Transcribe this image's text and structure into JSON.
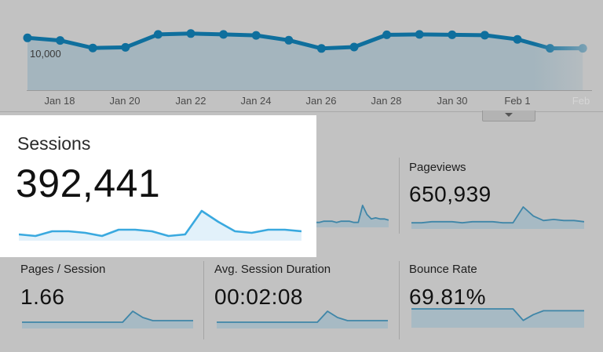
{
  "colors": {
    "background": "#c2c2c2",
    "line": "#0f6f9d",
    "area": "#a4b5be",
    "spark_line_dim": "#3f86a8",
    "spark_area_dim": "#a7bac4",
    "spark_line_bright": "#3aa9df",
    "spark_area_bright": "#e2f1fa",
    "card": "#ffffff"
  },
  "main_chart": {
    "y_axis_label": "10,000",
    "x_axis_labels": [
      "Jan 18",
      "Jan 20",
      "Jan 22",
      "Jan 24",
      "Jan 26",
      "Jan 28",
      "Jan 30",
      "Feb 1",
      "Feb"
    ],
    "sessions_series": [
      13260,
      12750,
      11270,
      11400,
      13930,
      14100,
      13930,
      13750,
      12790,
      11180,
      11460,
      13850,
      13930,
      13850,
      13780,
      12960,
      11220,
      11220
    ]
  },
  "metrics": {
    "sessions": {
      "label": "Sessions",
      "value": "392,441",
      "spark": [
        3,
        2,
        5,
        5,
        4,
        2,
        6,
        6,
        5,
        2,
        3,
        18,
        11,
        5,
        4,
        6,
        6,
        5
      ]
    },
    "users": {
      "spark": [
        3,
        3,
        4,
        4,
        4,
        3,
        4,
        4,
        4,
        3,
        3,
        18,
        10,
        6,
        7,
        6,
        6,
        5
      ]
    },
    "pageviews": {
      "label": "Pageviews",
      "value": "650,939",
      "spark": [
        4,
        4,
        5,
        5,
        5,
        4,
        5,
        5,
        5,
        4,
        4,
        18,
        10,
        6,
        7,
        6,
        6,
        5
      ]
    },
    "pages_per_session": {
      "label": "Pages / Session",
      "value": "1.66",
      "spark": [
        3,
        3,
        3,
        3,
        3,
        3,
        3,
        3,
        3,
        3,
        3,
        10,
        6,
        4,
        4,
        4,
        4,
        4
      ]
    },
    "avg_session_duration": {
      "label": "Avg. Session Duration",
      "value": "00:02:08",
      "spark": [
        3,
        3,
        3,
        3,
        3,
        3,
        3,
        3,
        3,
        3,
        3,
        10,
        6,
        4,
        4,
        4,
        4,
        4
      ]
    },
    "bounce_rate": {
      "label": "Bounce Rate",
      "value": "69.81%",
      "spark": [
        9,
        9,
        9,
        9,
        9,
        9,
        9,
        9,
        9,
        9,
        9,
        3,
        6,
        8,
        8,
        8,
        8,
        8
      ]
    }
  }
}
